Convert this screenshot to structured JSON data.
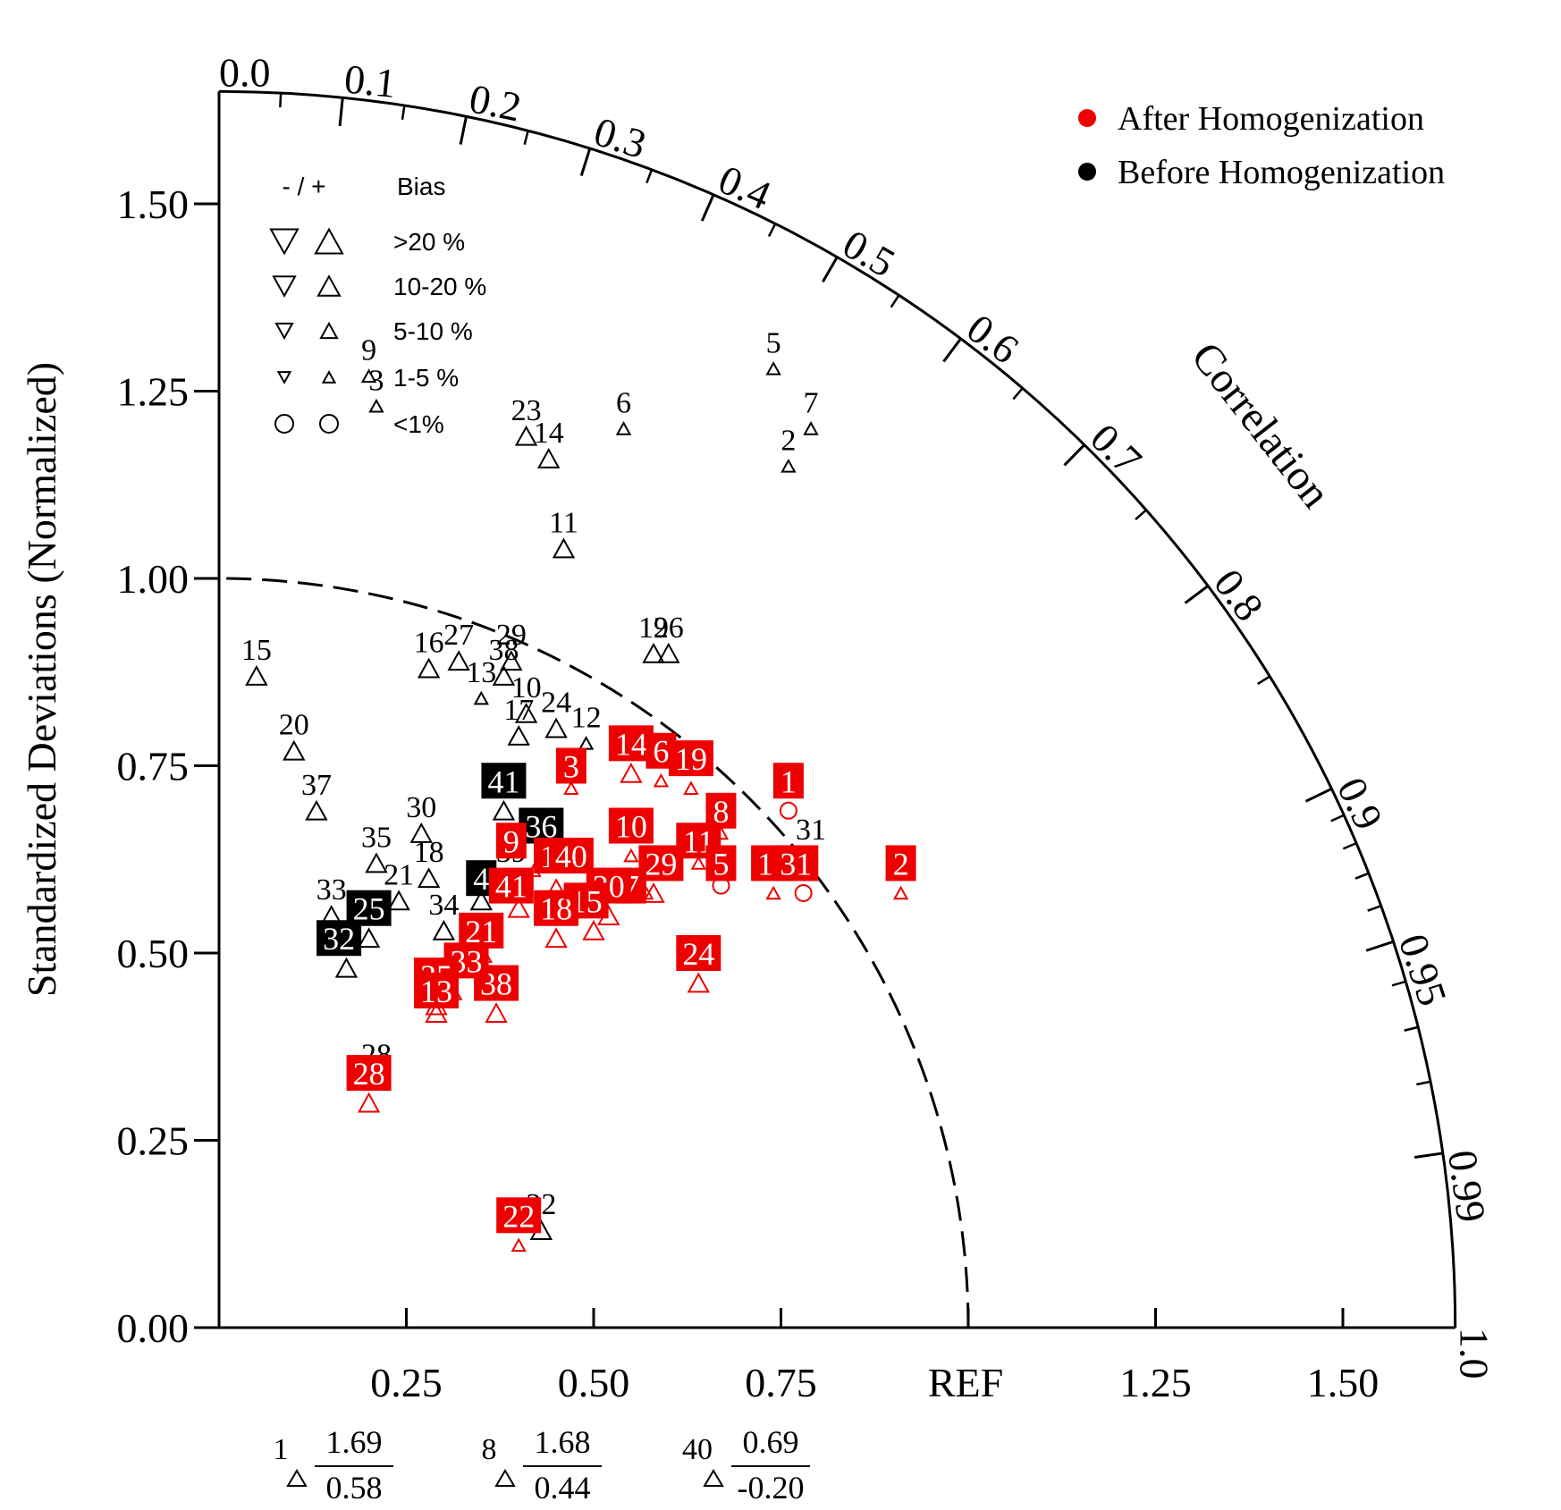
{
  "chart_data": {
    "type": "scatter",
    "subtype": "taylor-diagram",
    "ylabel": "Standardized Deviations (Normalized)",
    "correlation_label": "Correlation",
    "ref_label": "REF",
    "ref_std": 1.0,
    "max_std": 1.65,
    "y_ticks": [
      "0.00",
      "0.25",
      "0.50",
      "0.75",
      "1.00",
      "1.25",
      "1.50"
    ],
    "x_ticks": [
      "0.25",
      "0.50",
      "0.75",
      "1.25",
      "1.50"
    ],
    "correlation_ticks": [
      "0.0",
      "0.1",
      "0.2",
      "0.3",
      "0.4",
      "0.5",
      "0.6",
      "0.7",
      "0.8",
      "0.9",
      "0.95",
      "0.99",
      "1.0"
    ],
    "legend_colors": {
      "items": [
        {
          "label": "After Homogenization",
          "color": "#ee0000"
        },
        {
          "label": "Before Homogenization",
          "color": "#000000"
        }
      ]
    },
    "bias_legend": {
      "header_sign": "- / +",
      "header_bias": "Bias",
      "rows": [
        {
          "label": ">20 %",
          "shape": "triangle",
          "size": "xl"
        },
        {
          "label": "10-20 %",
          "shape": "triangle",
          "size": "l"
        },
        {
          "label": "5-10 %",
          "shape": "triangle",
          "size": "m"
        },
        {
          "label": "1-5 %",
          "shape": "triangle",
          "size": "s"
        },
        {
          "label": "<1%",
          "shape": "circle",
          "size": "c"
        }
      ]
    },
    "off_scale": [
      {
        "id": "1",
        "top": "1.69",
        "bottom": "0.58"
      },
      {
        "id": "8",
        "top": "1.68",
        "bottom": "0.44"
      },
      {
        "id": "40",
        "top": "0.69",
        "bottom": "-0.20"
      }
    ],
    "series": [
      {
        "name": "Before Homogenization",
        "color": "#000000",
        "points": [
          {
            "id": "9",
            "x": 0.2,
            "y": 1.27,
            "shape": "tri-s"
          },
          {
            "id": "3",
            "x": 0.21,
            "y": 1.23,
            "shape": "tri-s"
          },
          {
            "id": "23",
            "x": 0.41,
            "y": 1.19,
            "shape": "tri-m"
          },
          {
            "id": "14",
            "x": 0.44,
            "y": 1.16,
            "shape": "tri-m"
          },
          {
            "id": "6",
            "x": 0.54,
            "y": 1.2,
            "shape": "tri-s"
          },
          {
            "id": "5",
            "x": 0.74,
            "y": 1.28,
            "shape": "tri-s"
          },
          {
            "id": "7",
            "x": 0.79,
            "y": 1.2,
            "shape": "tri-s"
          },
          {
            "id": "2",
            "x": 0.76,
            "y": 1.15,
            "shape": "tri-s"
          },
          {
            "id": "11",
            "x": 0.46,
            "y": 1.04,
            "shape": "tri-m"
          },
          {
            "id": "15",
            "x": 0.05,
            "y": 0.87,
            "shape": "tri-m"
          },
          {
            "id": "16",
            "x": 0.28,
            "y": 0.88,
            "shape": "tri-m"
          },
          {
            "id": "27",
            "x": 0.32,
            "y": 0.89,
            "shape": "tri-m"
          },
          {
            "id": "29",
            "x": 0.39,
            "y": 0.89,
            "shape": "tri-m"
          },
          {
            "id": "38",
            "x": 0.38,
            "y": 0.87,
            "shape": "tri-m"
          },
          {
            "id": "13",
            "x": 0.35,
            "y": 0.84,
            "shape": "tri-s"
          },
          {
            "id": "10",
            "x": 0.41,
            "y": 0.82,
            "shape": "tri-m"
          },
          {
            "id": "17",
            "x": 0.4,
            "y": 0.79,
            "shape": "tri-m"
          },
          {
            "id": "24",
            "x": 0.45,
            "y": 0.8,
            "shape": "tri-m"
          },
          {
            "id": "12",
            "x": 0.49,
            "y": 0.78,
            "shape": "tri-s"
          },
          {
            "id": "19",
            "x": 0.58,
            "y": 0.9,
            "shape": "tri-m"
          },
          {
            "id": "26",
            "x": 0.6,
            "y": 0.9,
            "shape": "tri-m"
          },
          {
            "id": "20",
            "x": 0.1,
            "y": 0.77,
            "shape": "tri-m"
          },
          {
            "id": "37",
            "x": 0.13,
            "y": 0.69,
            "shape": "tri-m"
          },
          {
            "id": "30",
            "x": 0.27,
            "y": 0.66,
            "shape": "tri-m"
          },
          {
            "id": "35",
            "x": 0.21,
            "y": 0.62,
            "shape": "tri-m"
          },
          {
            "id": "18",
            "x": 0.28,
            "y": 0.6,
            "shape": "tri-m"
          },
          {
            "id": "21",
            "x": 0.24,
            "y": 0.57,
            "shape": "tri-m"
          },
          {
            "id": "39",
            "x": 0.39,
            "y": 0.6,
            "shape": "tri-s"
          },
          {
            "id": "34",
            "x": 0.3,
            "y": 0.53,
            "shape": "tri-m"
          },
          {
            "id": "33",
            "x": 0.15,
            "y": 0.55,
            "shape": "tri-m"
          },
          {
            "id": "31",
            "x": 0.79,
            "y": 0.63,
            "shape": "tri-s"
          },
          {
            "id": "28",
            "x": 0.21,
            "y": 0.33,
            "shape": "tri-s"
          },
          {
            "id": "22",
            "x": 0.43,
            "y": 0.13,
            "shape": "tri-m"
          },
          {
            "id": "41",
            "x": 0.38,
            "y": 0.69,
            "shape": "tri-m",
            "boxed": true,
            "bx": 0.38,
            "by": 0.73
          },
          {
            "id": "36",
            "x": 0.44,
            "y": 0.63,
            "shape": "tri-m",
            "boxed": true,
            "bx": 0.43,
            "by": 0.67
          },
          {
            "id": "4",
            "x": 0.35,
            "y": 0.57,
            "shape": "tri-m",
            "boxed": true,
            "bx": 0.35,
            "by": 0.6
          },
          {
            "id": "25",
            "x": 0.2,
            "y": 0.52,
            "shape": "tri-m",
            "boxed": true,
            "bx": 0.2,
            "by": 0.56
          },
          {
            "id": "32",
            "x": 0.17,
            "y": 0.48,
            "shape": "tri-m",
            "boxed": true,
            "bx": 0.16,
            "by": 0.52
          }
        ]
      },
      {
        "name": "After Homogenization",
        "color": "#ee0000",
        "points": [
          {
            "id": "3",
            "x": 0.47,
            "y": 0.72,
            "shape": "tri-s",
            "bx": 0.47,
            "by": 0.75
          },
          {
            "id": "14",
            "x": 0.55,
            "y": 0.74,
            "shape": "tri-m",
            "bx": 0.55,
            "by": 0.78
          },
          {
            "id": "6",
            "x": 0.59,
            "y": 0.73,
            "shape": "tri-s",
            "bx": 0.59,
            "by": 0.77
          },
          {
            "id": "19",
            "x": 0.63,
            "y": 0.72,
            "shape": "tri-s",
            "bx": 0.63,
            "by": 0.76
          },
          {
            "id": "1",
            "x": 0.76,
            "y": 0.69,
            "shape": "circle",
            "bx": 0.76,
            "by": 0.73
          },
          {
            "id": "8",
            "x": 0.67,
            "y": 0.66,
            "shape": "tri-s",
            "bx": 0.67,
            "by": 0.69
          },
          {
            "id": "10",
            "x": 0.55,
            "y": 0.63,
            "shape": "tri-s",
            "bx": 0.55,
            "by": 0.67
          },
          {
            "id": "11",
            "x": 0.64,
            "y": 0.62,
            "shape": "tri-s",
            "bx": 0.64,
            "by": 0.65
          },
          {
            "id": "5",
            "x": 0.67,
            "y": 0.59,
            "shape": "circle",
            "bx": 0.67,
            "by": 0.62
          },
          {
            "id": "16",
            "x": 0.74,
            "y": 0.58,
            "shape": "tri-s",
            "bx": 0.74,
            "by": 0.62
          },
          {
            "id": "31",
            "x": 0.78,
            "y": 0.58,
            "shape": "circle",
            "bx": 0.77,
            "by": 0.62
          },
          {
            "id": "2",
            "x": 0.91,
            "y": 0.58,
            "shape": "tri-s",
            "bx": 0.91,
            "by": 0.62
          },
          {
            "id": "29",
            "x": 0.58,
            "y": 0.58,
            "shape": "tri-m",
            "bx": 0.59,
            "by": 0.62
          },
          {
            "id": "7",
            "x": 0.57,
            "y": 0.58,
            "shape": "tri-s",
            "bx": 0.55,
            "by": 0.59
          },
          {
            "id": "20",
            "x": 0.52,
            "y": 0.55,
            "shape": "tri-m",
            "bx": 0.52,
            "by": 0.59
          },
          {
            "id": "15",
            "x": 0.5,
            "y": 0.53,
            "shape": "tri-m",
            "bx": 0.49,
            "by": 0.57
          },
          {
            "id": "18",
            "x": 0.45,
            "y": 0.52,
            "shape": "tri-m",
            "bx": 0.45,
            "by": 0.56
          },
          {
            "id": "9",
            "x": 0.42,
            "y": 0.61,
            "shape": "tri-s",
            "bx": 0.39,
            "by": 0.65
          },
          {
            "id": "17",
            "x": 0.45,
            "y": 0.59,
            "shape": "tri-s",
            "bx": 0.45,
            "by": 0.63
          },
          {
            "id": "40",
            "x": 0.47,
            "y": 0.58,
            "shape": "tri-s",
            "bx": 0.47,
            "by": 0.63
          },
          {
            "id": "41",
            "x": 0.4,
            "y": 0.56,
            "shape": "tri-m",
            "bx": 0.39,
            "by": 0.59
          },
          {
            "id": "21",
            "x": 0.35,
            "y": 0.5,
            "shape": "tri-m",
            "bx": 0.35,
            "by": 0.53
          },
          {
            "id": "24",
            "x": 0.64,
            "y": 0.46,
            "shape": "tri-m",
            "bx": 0.64,
            "by": 0.5
          },
          {
            "id": "38",
            "x": 0.37,
            "y": 0.42,
            "shape": "tri-m",
            "bx": 0.37,
            "by": 0.46
          },
          {
            "id": "33",
            "x": 0.31,
            "y": 0.45,
            "shape": "tri-m",
            "bx": 0.33,
            "by": 0.49
          },
          {
            "id": "35",
            "x": 0.29,
            "y": 0.42,
            "shape": "tri-m",
            "bx": 0.29,
            "by": 0.47
          },
          {
            "id": "13",
            "x": 0.29,
            "y": 0.43,
            "shape": "tri-m",
            "bx": 0.29,
            "by": 0.45
          },
          {
            "id": "28",
            "x": 0.2,
            "y": 0.3,
            "shape": "tri-m",
            "bx": 0.2,
            "by": 0.34
          },
          {
            "id": "22",
            "x": 0.4,
            "y": 0.11,
            "shape": "tri-s",
            "bx": 0.4,
            "by": 0.15
          }
        ]
      }
    ]
  }
}
